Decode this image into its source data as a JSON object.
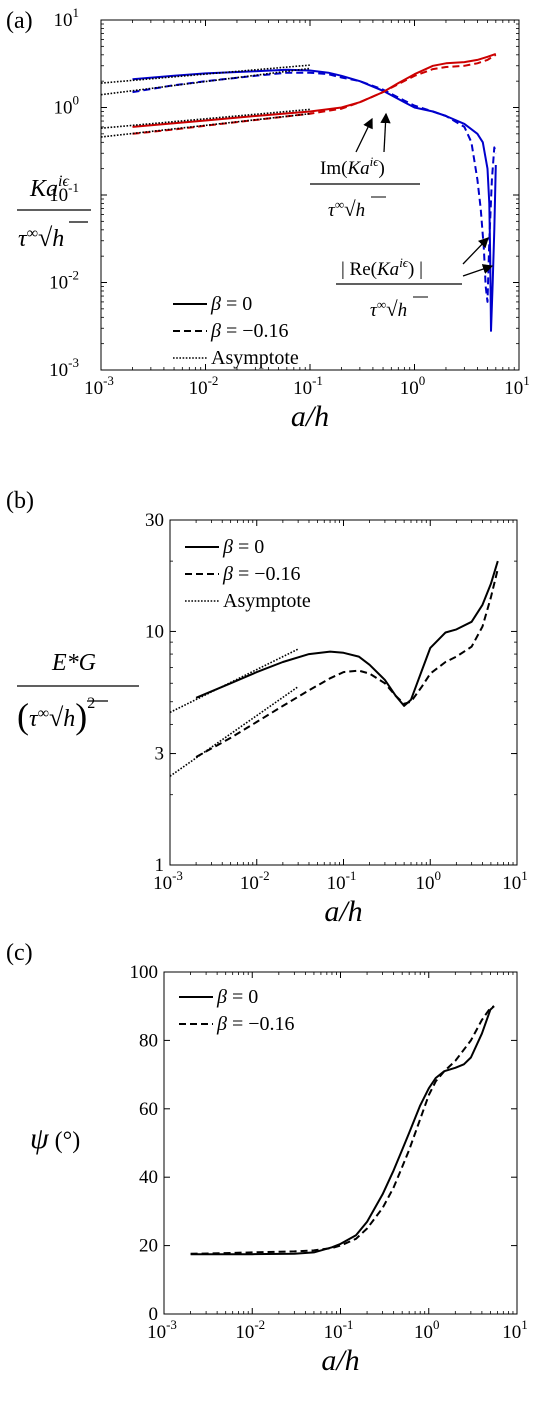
{
  "chart_data": [
    {
      "panel_label": "(a)",
      "type": "line",
      "xscale": "log",
      "yscale": "log",
      "xlim": [
        0.001,
        10
      ],
      "ylim": [
        0.001,
        10
      ],
      "xlabel": "a/h",
      "ylabel": "Kaiε / τ∞√h",
      "xticks": [
        {
          "value": 0.001,
          "base": "10",
          "exp": "-3"
        },
        {
          "value": 0.01,
          "base": "10",
          "exp": "-2"
        },
        {
          "value": 0.1,
          "base": "10",
          "exp": "-1"
        },
        {
          "value": 1,
          "base": "10",
          "exp": "0"
        },
        {
          "value": 10,
          "base": "10",
          "exp": "1"
        }
      ],
      "yticks": [
        {
          "value": 0.001,
          "base": "10",
          "exp": "-3"
        },
        {
          "value": 0.01,
          "base": "10",
          "exp": "-2"
        },
        {
          "value": 0.1,
          "base": "10",
          "exp": "-1"
        },
        {
          "value": 1,
          "base": "10",
          "exp": "0"
        },
        {
          "value": 10,
          "base": "10",
          "exp": "1"
        }
      ],
      "legend": [
        "β = 0",
        "β = −0.16",
        "Asymptote"
      ],
      "legend_position": "bottom-left",
      "annotations": [
        "Im(Kaiε) / τ∞√h",
        "| Re(Kaiε) | / τ∞√h"
      ],
      "series": [
        {
          "name": "β = 0",
          "component": "| Re |",
          "style": "solid",
          "color": "#0000cc",
          "x": [
            0.002,
            0.005,
            0.01,
            0.03,
            0.06,
            0.1,
            0.15,
            0.2,
            0.3,
            0.5,
            0.8,
            1.0,
            1.5,
            2,
            3,
            4,
            4.5,
            5,
            5.2,
            5.3,
            5.4,
            5.6,
            5.8,
            6
          ],
          "y": [
            2.1,
            2.3,
            2.45,
            2.6,
            2.7,
            2.65,
            2.5,
            2.3,
            2.0,
            1.55,
            1.15,
            1.0,
            0.9,
            0.8,
            0.65,
            0.5,
            0.4,
            0.2,
            0.08,
            0.02,
            0.0028,
            0.01,
            0.04,
            0.22
          ]
        },
        {
          "name": "β = 0",
          "component": "Im",
          "style": "solid",
          "color": "#cc0000",
          "x": [
            0.002,
            0.005,
            0.01,
            0.03,
            0.1,
            0.2,
            0.3,
            0.5,
            0.7,
            1.0,
            1.5,
            2.0,
            3.0,
            4.0,
            5.0,
            6.0
          ],
          "y": [
            0.6,
            0.66,
            0.71,
            0.8,
            0.9,
            1.0,
            1.15,
            1.5,
            1.9,
            2.4,
            3.0,
            3.2,
            3.3,
            3.5,
            3.8,
            4.1
          ]
        },
        {
          "name": "β = −0.16",
          "component": "| Re |",
          "style": "dashed",
          "color": "#0000cc",
          "x": [
            0.002,
            0.005,
            0.01,
            0.03,
            0.06,
            0.1,
            0.15,
            0.2,
            0.3,
            0.5,
            0.8,
            1.0,
            1.5,
            2,
            3,
            3.5,
            4,
            4.3,
            4.6,
            4.8,
            5.0,
            5.2,
            5.5,
            5.8,
            6
          ],
          "y": [
            1.5,
            1.8,
            2.0,
            2.3,
            2.5,
            2.5,
            2.4,
            2.2,
            2.0,
            1.6,
            1.2,
            1.05,
            0.9,
            0.8,
            0.6,
            0.4,
            0.15,
            0.07,
            0.025,
            0.009,
            0.006,
            0.03,
            0.15,
            0.35,
            0.3
          ]
        },
        {
          "name": "β = −0.16",
          "component": "Im",
          "style": "dashed",
          "color": "#cc0000",
          "x": [
            0.002,
            0.005,
            0.01,
            0.03,
            0.1,
            0.2,
            0.3,
            0.5,
            0.7,
            1.0,
            1.5,
            2.0,
            3.0,
            4.0,
            5.0,
            6.0
          ],
          "y": [
            0.5,
            0.56,
            0.62,
            0.72,
            0.85,
            0.97,
            1.15,
            1.5,
            1.85,
            2.3,
            2.75,
            2.9,
            3.0,
            3.2,
            3.5,
            4.0
          ]
        },
        {
          "name": "Asymptote",
          "style": "dotted",
          "color": "#000000",
          "x": [
            0.001,
            0.1
          ],
          "y": [
            1.9,
            3.05
          ]
        },
        {
          "name": "Asymptote",
          "style": "dotted",
          "color": "#000000",
          "x": [
            0.001,
            0.1
          ],
          "y": [
            1.4,
            2.8
          ]
        },
        {
          "name": "Asymptote",
          "style": "dotted",
          "color": "#000000",
          "x": [
            0.001,
            0.1
          ],
          "y": [
            0.58,
            0.95
          ]
        },
        {
          "name": "Asymptote",
          "style": "dotted",
          "color": "#000000",
          "x": [
            0.001,
            0.1
          ],
          "y": [
            0.46,
            0.85
          ]
        }
      ]
    },
    {
      "panel_label": "(b)",
      "type": "line",
      "xscale": "log",
      "yscale": "log",
      "xlim": [
        0.001,
        10
      ],
      "ylim": [
        1,
        30
      ],
      "xlabel": "a/h",
      "ylabel": "E*G / (τ∞√h)²",
      "xticks": [
        {
          "value": 0.001,
          "base": "10",
          "exp": "-3"
        },
        {
          "value": 0.01,
          "base": "10",
          "exp": "-2"
        },
        {
          "value": 0.1,
          "base": "10",
          "exp": "-1"
        },
        {
          "value": 1,
          "base": "10",
          "exp": "0"
        },
        {
          "value": 10,
          "base": "10",
          "exp": "1"
        }
      ],
      "yticks": [
        {
          "value": 1,
          "label": "1"
        },
        {
          "value": 3,
          "label": "3"
        },
        {
          "value": 10,
          "label": "10"
        },
        {
          "value": 30,
          "label": "30"
        }
      ],
      "legend": [
        "β = 0",
        "β = −0.16",
        "Asymptote"
      ],
      "legend_position": "top-left",
      "series": [
        {
          "name": "β = 0",
          "style": "solid",
          "color": "#000000",
          "x": [
            0.002,
            0.005,
            0.01,
            0.02,
            0.04,
            0.07,
            0.1,
            0.15,
            0.2,
            0.3,
            0.4,
            0.5,
            0.6,
            0.8,
            1.0,
            1.5,
            2.0,
            3.0,
            4.0,
            5.0,
            6.0
          ],
          "y": [
            5.2,
            6.0,
            6.7,
            7.4,
            8.0,
            8.2,
            8.1,
            7.8,
            7.2,
            6.2,
            5.3,
            4.8,
            5.1,
            6.8,
            8.5,
            9.9,
            10.2,
            11.0,
            13.0,
            16.0,
            20.0
          ]
        },
        {
          "name": "β = −0.16",
          "style": "dashed",
          "color": "#000000",
          "x": [
            0.002,
            0.005,
            0.01,
            0.02,
            0.04,
            0.07,
            0.1,
            0.15,
            0.2,
            0.3,
            0.4,
            0.5,
            0.6,
            0.8,
            1.0,
            1.5,
            2.0,
            3.0,
            4.0,
            5.0,
            6.0
          ],
          "y": [
            2.9,
            3.5,
            4.1,
            4.8,
            5.6,
            6.3,
            6.7,
            6.8,
            6.6,
            6.0,
            5.3,
            4.9,
            5.0,
            5.8,
            6.6,
            7.4,
            7.8,
            8.6,
            10.5,
            14.0,
            18.5
          ]
        },
        {
          "name": "Asymptote",
          "style": "dotted",
          "color": "#000000",
          "x": [
            0.001,
            0.03
          ],
          "y": [
            4.5,
            8.4
          ]
        },
        {
          "name": "Asymptote",
          "style": "dotted",
          "color": "#000000",
          "x": [
            0.001,
            0.03
          ],
          "y": [
            2.4,
            5.8
          ]
        }
      ]
    },
    {
      "panel_label": "(c)",
      "type": "line",
      "xscale": "log",
      "yscale": "linear",
      "xlim": [
        0.001,
        10
      ],
      "ylim": [
        0,
        100
      ],
      "xlabel": "a/h",
      "ylabel": "ψ (°)",
      "xticks": [
        {
          "value": 0.001,
          "base": "10",
          "exp": "-3"
        },
        {
          "value": 0.01,
          "base": "10",
          "exp": "-2"
        },
        {
          "value": 0.1,
          "base": "10",
          "exp": "-1"
        },
        {
          "value": 1,
          "base": "10",
          "exp": "0"
        },
        {
          "value": 10,
          "base": "10",
          "exp": "1"
        }
      ],
      "yticks": [
        {
          "value": 0,
          "label": "0"
        },
        {
          "value": 20,
          "label": "20"
        },
        {
          "value": 40,
          "label": "40"
        },
        {
          "value": 60,
          "label": "60"
        },
        {
          "value": 80,
          "label": "80"
        },
        {
          "value": 100,
          "label": "100"
        }
      ],
      "legend": [
        "β = 0",
        "β = −0.16"
      ],
      "legend_position": "top-left",
      "series": [
        {
          "name": "β = 0",
          "style": "solid",
          "color": "#000000",
          "x": [
            0.002,
            0.005,
            0.01,
            0.03,
            0.05,
            0.08,
            0.1,
            0.15,
            0.2,
            0.3,
            0.4,
            0.5,
            0.6,
            0.8,
            1.0,
            1.2,
            1.5,
            2.0,
            2.5,
            3.0,
            4.0,
            5.0,
            5.5
          ],
          "y": [
            17.5,
            17.5,
            17.5,
            17.6,
            18.0,
            19.5,
            20.5,
            23.0,
            27.0,
            35.0,
            42.0,
            48.0,
            53.0,
            61.0,
            66.0,
            69.0,
            71.0,
            72.0,
            73.0,
            75.0,
            82.0,
            89.0,
            90.0
          ]
        },
        {
          "name": "β = −0.16",
          "style": "dashed",
          "color": "#000000",
          "x": [
            0.002,
            0.005,
            0.01,
            0.03,
            0.05,
            0.08,
            0.1,
            0.15,
            0.2,
            0.3,
            0.4,
            0.5,
            0.6,
            0.8,
            1.0,
            1.2,
            1.5,
            2.0,
            3.0,
            4.0,
            5.0,
            5.5
          ],
          "y": [
            17.6,
            17.8,
            18.0,
            18.3,
            18.6,
            19.3,
            20.0,
            22.0,
            25.0,
            31.0,
            37.0,
            43.0,
            48.0,
            57.0,
            64.0,
            68.0,
            71.0,
            74.0,
            80.0,
            86.0,
            89.5,
            90.0
          ]
        }
      ]
    }
  ]
}
